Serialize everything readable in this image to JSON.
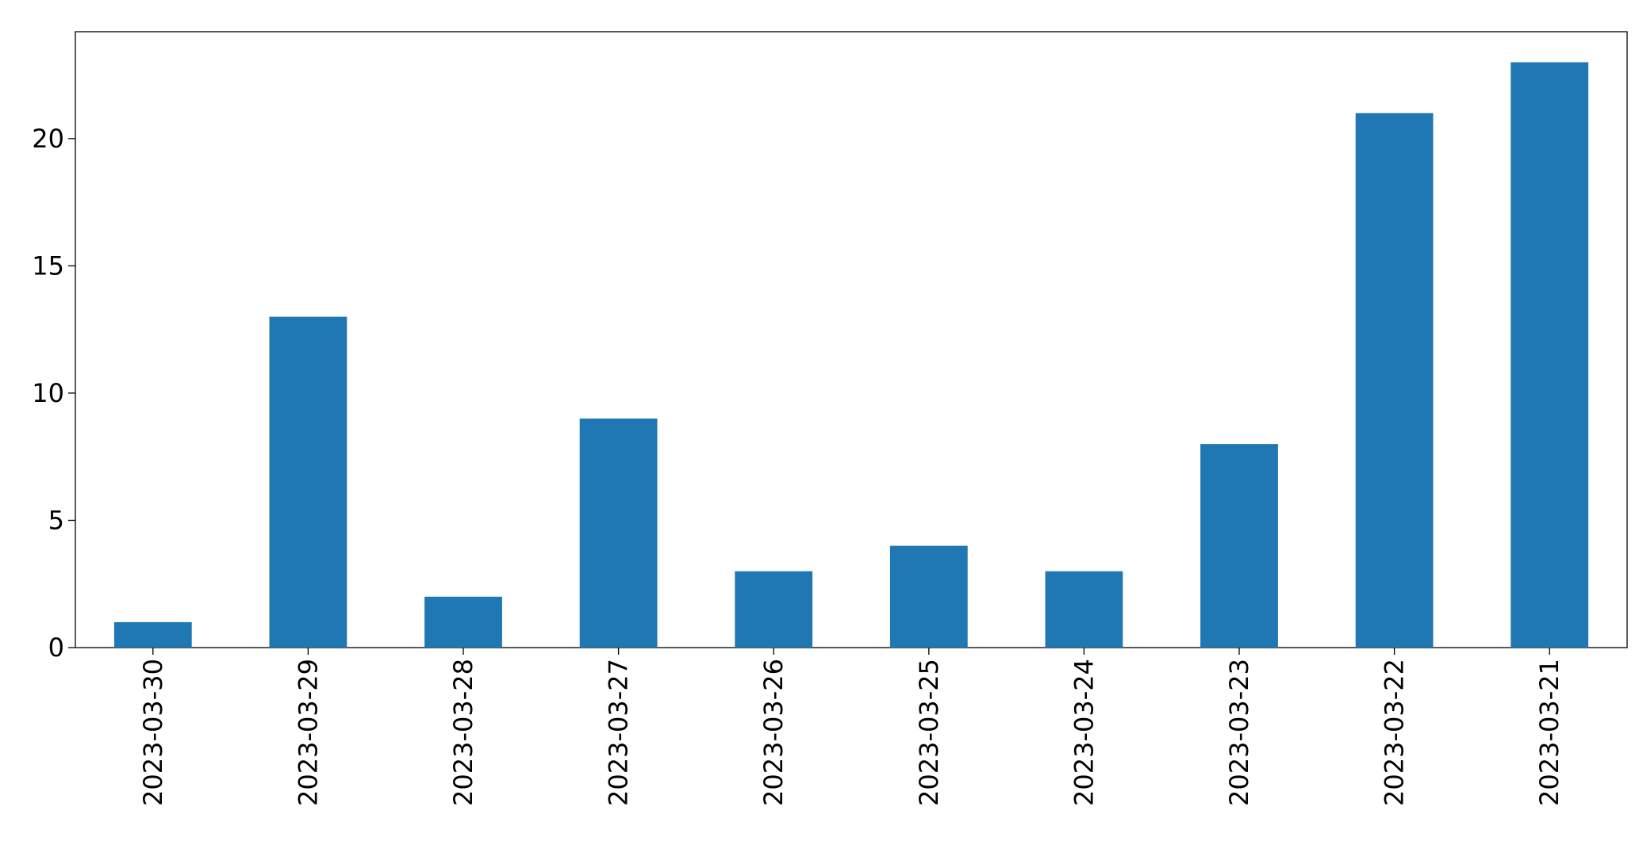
{
  "chart_data": {
    "type": "bar",
    "categories": [
      "2023-03-30",
      "2023-03-29",
      "2023-03-28",
      "2023-03-27",
      "2023-03-26",
      "2023-03-25",
      "2023-03-24",
      "2023-03-23",
      "2023-03-22",
      "2023-03-21"
    ],
    "values": [
      1,
      13,
      2,
      9,
      3,
      4,
      3,
      8,
      21,
      23
    ],
    "color": "#1f77b4",
    "ylim": [
      0,
      24.2
    ],
    "yticks": [
      0,
      5,
      10,
      15,
      20
    ],
    "grid": false
  }
}
